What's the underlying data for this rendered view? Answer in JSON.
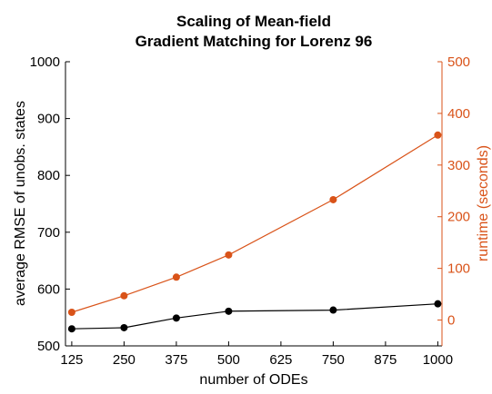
{
  "chart_data": {
    "type": "line",
    "title": [
      "Scaling of Mean-field",
      "Gradient Matching for Lorenz 96"
    ],
    "xlabel": "number of ODEs",
    "ylabel_left": "average RMSE of unobs. states",
    "ylabel_right": "runtime (seconds)",
    "xlim": [
      110,
      1010
    ],
    "xticks": [
      125,
      250,
      375,
      500,
      625,
      750,
      875,
      1000
    ],
    "ylim_left": [
      500,
      1000
    ],
    "yticks_left": [
      500,
      600,
      700,
      800,
      900,
      1000
    ],
    "ylim_right": [
      -50,
      500
    ],
    "yticks_right": [
      0,
      100,
      200,
      300,
      400,
      500
    ],
    "grid": false,
    "series": [
      {
        "axis": "left",
        "color": "#000000",
        "x": [
          125,
          250,
          375,
          500,
          750,
          1000
        ],
        "y": [
          530,
          532,
          549,
          561,
          563,
          574
        ]
      },
      {
        "axis": "right",
        "color": "#d95319",
        "x": [
          125,
          250,
          375,
          500,
          750,
          1000
        ],
        "y": [
          15,
          47,
          83,
          126,
          233,
          358
        ]
      }
    ]
  }
}
